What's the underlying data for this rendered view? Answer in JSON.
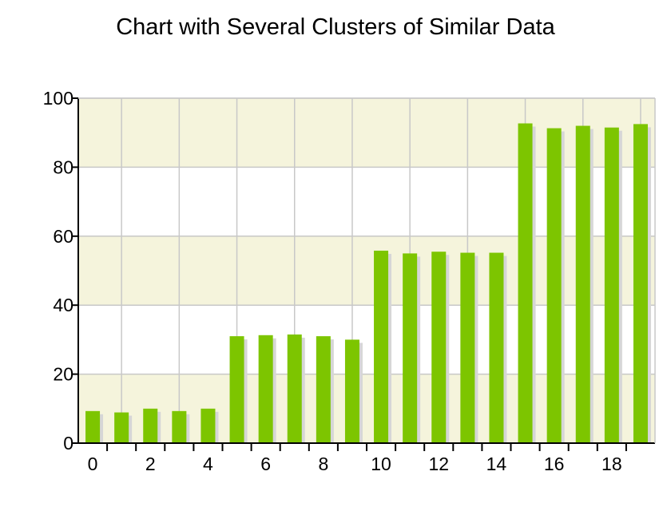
{
  "chart_data": {
    "type": "bar",
    "title": "Chart with Several Clusters of Similar Data",
    "xlabel": "",
    "ylabel": "",
    "x": [
      0,
      1,
      2,
      3,
      4,
      5,
      6,
      7,
      8,
      9,
      10,
      11,
      12,
      13,
      14,
      15,
      16,
      17,
      18,
      19
    ],
    "values": [
      9.3,
      8.9,
      10.0,
      9.3,
      10.0,
      31.0,
      31.3,
      31.5,
      31.0,
      30.0,
      55.8,
      55.0,
      55.5,
      55.2,
      55.2,
      92.7,
      91.3,
      92.0,
      91.5,
      92.5
    ],
    "xticks": [
      "0",
      "2",
      "4",
      "6",
      "8",
      "10",
      "12",
      "14",
      "16",
      "18"
    ],
    "yticks": [
      "0",
      "20",
      "40",
      "60",
      "80",
      "100"
    ],
    "ylim": [
      0,
      100
    ],
    "grid": true,
    "legend": "none",
    "colors": {
      "bar": "#7dc500",
      "bar_shadow": "#d6d6d6",
      "band": "#f5f4dc",
      "plot_bg": "#ffffff",
      "grid": "#c8c8c8",
      "axis": "#000000"
    }
  }
}
